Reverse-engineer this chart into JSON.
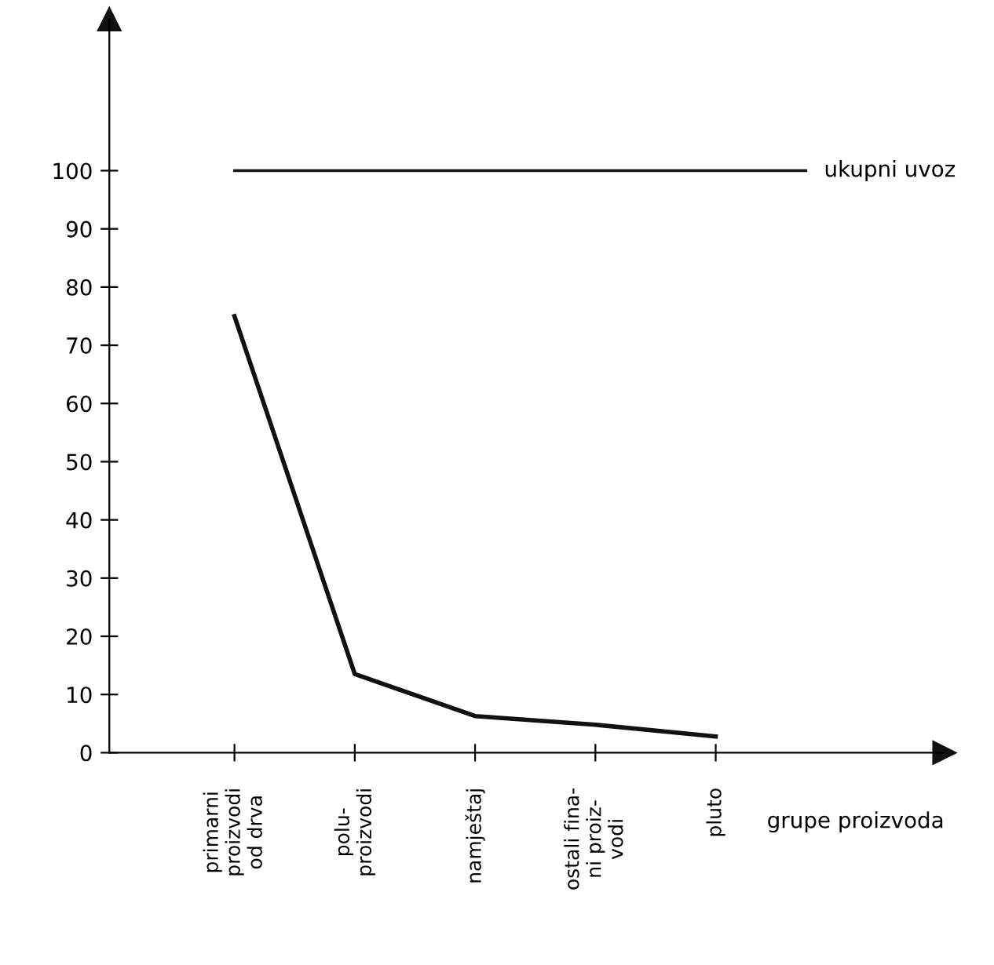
{
  "chart_data": {
    "type": "line",
    "xlabel": "grupe proizvoda",
    "categories": [
      "primarni\nproizvodi\nod drva",
      "polu-\nproizvodi",
      "namještaj",
      "ostali fina-\nni proiz-\nvodi",
      "pluto"
    ],
    "series": [
      {
        "color": "#111111",
        "values": [
          75,
          13.5,
          6.3,
          4.8,
          2.8
        ]
      }
    ],
    "ylim": [
      0,
      126
    ],
    "yticks": [
      0,
      10,
      20,
      30,
      40,
      50,
      60,
      70,
      80,
      90,
      100
    ],
    "ref_lines": [
      {
        "axis": "y",
        "value": 100,
        "label": "ukupni uvoz",
        "color": "#111111"
      }
    ],
    "grid": false,
    "legend": false,
    "marker": "none",
    "line_style": "solid"
  }
}
